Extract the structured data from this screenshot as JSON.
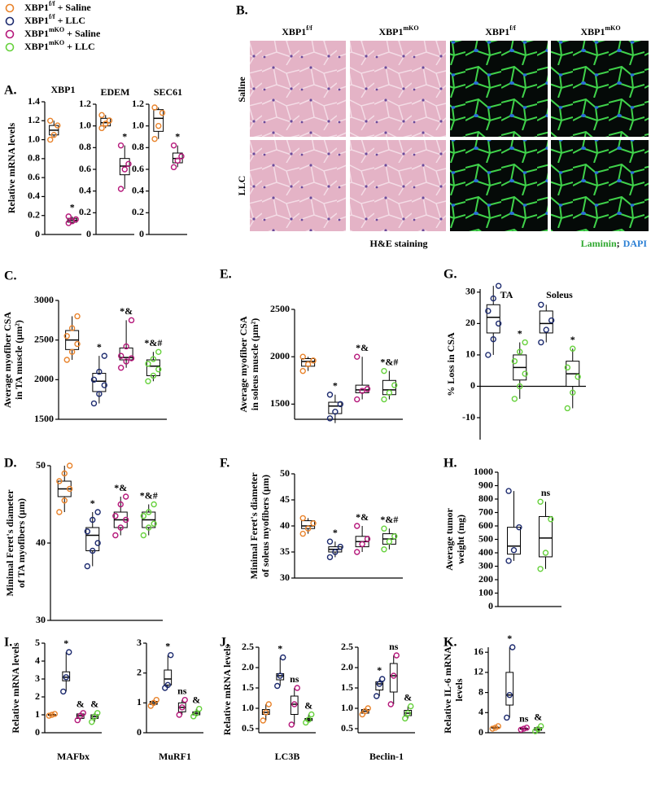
{
  "legend": [
    {
      "gene": "XBP1",
      "sup": "f/f",
      "label": "+ Saline",
      "color": "#e8822a"
    },
    {
      "gene": "XBP1",
      "sup": "f/f",
      "label": "+ LLC",
      "color": "#1c2a6e"
    },
    {
      "gene": "XBP1",
      "sup": "mKO",
      "label": "+ Saline",
      "color": "#b5177a"
    },
    {
      "gene": "XBP1",
      "sup": "mKO",
      "label": "+ LLC",
      "color": "#66d13c"
    }
  ],
  "panel_b": {
    "panel": "B.",
    "columns": [
      {
        "gene": "XBP1",
        "sup": "f/f"
      },
      {
        "gene": "XBP1",
        "sup": "mKO"
      },
      {
        "gene": "XBP1",
        "sup": "f/f"
      },
      {
        "gene": "XBP1",
        "sup": "mKO"
      }
    ],
    "rows": [
      "Saline",
      "LLC"
    ],
    "he_label": "H&E staining",
    "if_label": [
      {
        "text": "Laminin",
        "color": "#2fa82f"
      },
      {
        "text": ";",
        "color": "#000"
      },
      {
        "text": "DAPI",
        "color": "#2a7fd4"
      }
    ]
  },
  "chart_data": [
    {
      "type": "box",
      "panel": "A.",
      "title": "XBP1",
      "ylabel": [
        "Relative mRNA levels"
      ],
      "ylim": [
        0,
        1.4
      ],
      "yticks": [
        0,
        0.2,
        0.4,
        0.6,
        0.8,
        {
          "value": 1,
          "label": "1.0"
        },
        1.2,
        1.4
      ],
      "groups": [
        {
          "color": "#e8822a",
          "box": [
            1.02,
            1.05,
            1.1,
            1.15,
            1.2
          ],
          "points": [
            1.0,
            1.05,
            1.15,
            1.2
          ]
        },
        {
          "color": "#b5177a",
          "box": [
            0.12,
            0.13,
            0.15,
            0.17,
            0.19
          ],
          "points": [
            0.12,
            0.14,
            0.16,
            0.19
          ],
          "annotation": "*"
        }
      ]
    },
    {
      "type": "box",
      "title": "EDEM",
      "ylim": [
        0,
        1.2
      ],
      "yticks": [
        0,
        0.2,
        0.4,
        0.6,
        0.8,
        {
          "value": 1,
          "label": "1.0"
        },
        1.2
      ],
      "groups": [
        {
          "color": "#e8822a",
          "box": [
            0.98,
            1.0,
            1.03,
            1.07,
            1.1
          ],
          "points": [
            0.98,
            1.02,
            1.05,
            1.1
          ]
        },
        {
          "color": "#b5177a",
          "box": [
            0.42,
            0.55,
            0.63,
            0.7,
            0.82
          ],
          "points": [
            0.42,
            0.6,
            0.65,
            0.82
          ],
          "annotation": "*"
        }
      ]
    },
    {
      "type": "box",
      "title": "SEC61",
      "ylim": [
        0,
        1.2
      ],
      "yticks": [
        0,
        0.2,
        0.4,
        0.6,
        0.8,
        {
          "value": 1,
          "label": "1.0"
        },
        1.2
      ],
      "groups": [
        {
          "color": "#e8822a",
          "box": [
            0.88,
            0.95,
            1.07,
            1.15,
            1.17
          ],
          "points": [
            0.88,
            1.0,
            1.12,
            1.17
          ]
        },
        {
          "color": "#b5177a",
          "box": [
            0.62,
            0.66,
            0.7,
            0.75,
            0.82
          ],
          "points": [
            0.62,
            0.68,
            0.72,
            0.82
          ],
          "annotation": "*"
        }
      ]
    },
    {
      "type": "box",
      "panel": "C.",
      "ylabel": [
        "Average myofiber CSA",
        "in TA muscle (µm²)"
      ],
      "ylim": [
        1500,
        3000
      ],
      "yticks": [
        1500,
        2000,
        2500,
        3000
      ],
      "groups": [
        {
          "color": "#e8822a",
          "box": [
            2250,
            2380,
            2500,
            2620,
            2800
          ],
          "points": [
            2250,
            2350,
            2450,
            2550,
            2650,
            2800
          ]
        },
        {
          "color": "#1c2a6e",
          "box": [
            1700,
            1850,
            1980,
            2080,
            2300
          ],
          "points": [
            1700,
            1820,
            1930,
            2000,
            2100,
            2300
          ],
          "annotation": "*"
        },
        {
          "color": "#b5177a",
          "box": [
            2150,
            2250,
            2280,
            2400,
            2750
          ],
          "points": [
            2150,
            2230,
            2270,
            2300,
            2420,
            2750
          ],
          "annotation": "*&"
        },
        {
          "color": "#66d13c",
          "box": [
            1980,
            2050,
            2170,
            2250,
            2350
          ],
          "points": [
            1980,
            2050,
            2130,
            2200,
            2260,
            2350
          ],
          "annotation": "*&#"
        }
      ]
    },
    {
      "type": "box",
      "panel": "E.",
      "ylabel": [
        "Average myofiber CSA",
        "in soleus muscle (µm²)"
      ],
      "ylim": [
        1340,
        2500
      ],
      "yticks": [
        1500,
        2000,
        2500
      ],
      "groups": [
        {
          "color": "#e8822a",
          "box": [
            1850,
            1900,
            1950,
            1980,
            2000
          ],
          "points": [
            1850,
            1920,
            1960,
            2000
          ]
        },
        {
          "color": "#1c2a6e",
          "box": [
            1300,
            1400,
            1480,
            1520,
            1600
          ],
          "points": [
            1350,
            1420,
            1500,
            1600
          ],
          "annotation": "*"
        },
        {
          "color": "#b5177a",
          "box": [
            1550,
            1620,
            1650,
            1700,
            2000
          ],
          "points": [
            1550,
            1640,
            1660,
            2000
          ],
          "annotation": "*&"
        },
        {
          "color": "#66d13c",
          "box": [
            1550,
            1600,
            1650,
            1750,
            1850
          ],
          "points": [
            1550,
            1620,
            1700,
            1850
          ],
          "annotation": "*&#"
        }
      ]
    },
    {
      "type": "box",
      "panel": "G.",
      "subtitles": [
        "TA",
        "Soleus"
      ],
      "ylabel": [
        "% Loss in CSA"
      ],
      "ylim": [
        -17,
        31
      ],
      "yticks": [
        -10,
        0,
        10,
        20,
        30
      ],
      "groups": [
        {
          "color": "#1c2a6e",
          "box": [
            10,
            17,
            22,
            26,
            32
          ],
          "points": [
            10,
            15,
            20,
            24,
            28,
            32
          ]
        },
        {
          "color": "#66d13c",
          "box": [
            -4,
            2,
            6,
            10,
            14
          ],
          "points": [
            -4,
            0,
            4,
            8,
            11,
            14
          ],
          "annotation": "*"
        },
        {
          "color": "#1c2a6e",
          "box": [
            14,
            17,
            20,
            24,
            26
          ],
          "points": [
            14,
            18,
            21,
            26
          ]
        },
        {
          "color": "#66d13c",
          "box": [
            -7,
            0,
            4,
            8,
            12
          ],
          "points": [
            -7,
            -2,
            3,
            6,
            12
          ],
          "annotation": "*"
        }
      ]
    },
    {
      "type": "box",
      "panel": "D.",
      "ylabel": [
        "Minimal Feret's diameter",
        "of TA myofibers (µm)"
      ],
      "ylim": [
        30,
        50
      ],
      "yticks": [
        30,
        40,
        50
      ],
      "groups": [
        {
          "color": "#e8822a",
          "box": [
            44,
            46,
            47,
            48,
            50
          ],
          "points": [
            44,
            45.5,
            47,
            48,
            49,
            50
          ]
        },
        {
          "color": "#1c2a6e",
          "box": [
            37,
            39,
            41,
            42,
            44
          ],
          "points": [
            37,
            39,
            40,
            41.5,
            43,
            44
          ],
          "annotation": "*"
        },
        {
          "color": "#b5177a",
          "box": [
            41,
            42,
            43,
            44,
            46
          ],
          "points": [
            41,
            42,
            43,
            43.5,
            45,
            46
          ],
          "annotation": "*&"
        },
        {
          "color": "#66d13c",
          "box": [
            41,
            42,
            43,
            44,
            45
          ],
          "points": [
            41,
            42,
            42.5,
            43.5,
            44,
            45
          ],
          "annotation": "*&#"
        }
      ]
    },
    {
      "type": "box",
      "panel": "F.",
      "ylabel": [
        "Minimal Feret's diameter",
        "of soleus myofibers (µm)"
      ],
      "ylim": [
        30,
        50
      ],
      "yticks": [
        30,
        35,
        40,
        45,
        50
      ],
      "groups": [
        {
          "color": "#e8822a",
          "box": [
            38.5,
            39.5,
            40,
            41,
            41.5
          ],
          "points": [
            38.5,
            39.5,
            40.5,
            41.5
          ]
        },
        {
          "color": "#1c2a6e",
          "box": [
            34,
            35,
            35.5,
            36,
            37
          ],
          "points": [
            34,
            35,
            36,
            37
          ],
          "annotation": "*"
        },
        {
          "color": "#b5177a",
          "box": [
            35,
            36,
            37,
            38,
            40
          ],
          "points": [
            35,
            36.5,
            37.5,
            40
          ],
          "annotation": "*&"
        },
        {
          "color": "#66d13c",
          "box": [
            35.5,
            36.5,
            37.5,
            38.5,
            39.5
          ],
          "points": [
            35.5,
            37,
            38,
            39.5
          ],
          "annotation": "*&#"
        }
      ]
    },
    {
      "type": "box",
      "panel": "H.",
      "ylabel": [
        "Average tumor",
        "weight (mg)"
      ],
      "ylim": [
        0,
        1000
      ],
      "yticks": [
        0,
        100,
        200,
        300,
        400,
        500,
        600,
        700,
        800,
        900,
        1000
      ],
      "groups": [
        {
          "color": "#1c2a6e",
          "box": [
            340,
            390,
            450,
            590,
            860
          ],
          "points": [
            340,
            420,
            590,
            860
          ]
        },
        {
          "color": "#66d13c",
          "box": [
            280,
            370,
            510,
            670,
            780
          ],
          "points": [
            280,
            400,
            650,
            780
          ],
          "annotation": "ns"
        }
      ]
    },
    {
      "type": "box",
      "panel": "I.",
      "xlabel": "MAFbx",
      "ylabel": [
        "Relative mRNA levels"
      ],
      "ylim": [
        0,
        5
      ],
      "yticks": [
        0,
        1,
        2,
        3,
        4,
        5
      ],
      "groups": [
        {
          "color": "#e8822a",
          "box": [
            0.95,
            0.97,
            1,
            1.02,
            1.05
          ],
          "points": [
            0.95,
            1,
            1.05
          ]
        },
        {
          "color": "#1c2a6e",
          "box": [
            2.3,
            2.9,
            3.1,
            3.4,
            4.5
          ],
          "points": [
            2.3,
            3.1,
            4.5
          ],
          "annotation": "*"
        },
        {
          "color": "#b5177a",
          "box": [
            0.7,
            0.8,
            0.95,
            1.05,
            1.1
          ],
          "points": [
            0.7,
            0.95,
            1.1
          ],
          "annotation": "&"
        },
        {
          "color": "#66d13c",
          "box": [
            0.6,
            0.8,
            0.9,
            1.0,
            1.1
          ],
          "points": [
            0.6,
            0.9,
            1.1
          ],
          "annotation": "&"
        }
      ]
    },
    {
      "type": "box",
      "xlabel": "MuRF1",
      "ylim": [
        0,
        3
      ],
      "yticks": [
        0,
        1,
        2,
        3
      ],
      "groups": [
        {
          "color": "#e8822a",
          "box": [
            0.9,
            0.95,
            1.0,
            1.05,
            1.1
          ],
          "points": [
            0.9,
            1.0,
            1.1
          ]
        },
        {
          "color": "#1c2a6e",
          "box": [
            1.5,
            1.6,
            1.8,
            2.1,
            2.6
          ],
          "points": [
            1.5,
            1.6,
            2.6
          ],
          "annotation": "*"
        },
        {
          "color": "#b5177a",
          "box": [
            0.6,
            0.7,
            0.85,
            1.0,
            1.1
          ],
          "points": [
            0.6,
            0.85,
            1.1
          ],
          "annotation": "ns"
        },
        {
          "color": "#66d13c",
          "box": [
            0.55,
            0.6,
            0.65,
            0.7,
            0.8
          ],
          "points": [
            0.55,
            0.65,
            0.8
          ],
          "annotation": "&"
        }
      ]
    },
    {
      "type": "box",
      "panel": "J.",
      "xlabel": "LC3B",
      "ylabel": [
        "Relative mRNA levels"
      ],
      "ylim": [
        0.4,
        2.5
      ],
      "yticks": [
        0.5,
        {
          "value": 1,
          "label": "1.0"
        },
        1.5,
        {
          "value": 2,
          "label": "2.0"
        },
        2.5
      ],
      "groups": [
        {
          "color": "#e8822a",
          "box": [
            0.7,
            0.85,
            0.9,
            0.97,
            1.1
          ],
          "points": [
            0.7,
            0.9,
            1.1
          ]
        },
        {
          "color": "#1c2a6e",
          "box": [
            1.55,
            1.7,
            1.8,
            1.85,
            2.25
          ],
          "points": [
            1.55,
            1.8,
            2.25
          ],
          "annotation": "*"
        },
        {
          "color": "#b5177a",
          "box": [
            0.6,
            0.85,
            1.1,
            1.3,
            1.5
          ],
          "points": [
            0.6,
            1.1,
            1.5
          ],
          "annotation": "ns"
        },
        {
          "color": "#66d13c",
          "box": [
            0.65,
            0.7,
            0.72,
            0.75,
            0.85
          ],
          "points": [
            0.65,
            0.72,
            0.85
          ],
          "annotation": "&"
        }
      ]
    },
    {
      "type": "box",
      "xlabel": "Beclin-1",
      "ylim": [
        0.4,
        2.5
      ],
      "yticks": [
        0.5,
        {
          "value": 1,
          "label": "1.0"
        },
        1.5,
        {
          "value": 2,
          "label": "2.0"
        },
        2.5
      ],
      "groups": [
        {
          "color": "#e8822a",
          "box": [
            0.85,
            0.88,
            0.93,
            0.97,
            1.0
          ],
          "points": [
            0.85,
            0.93,
            1.0
          ]
        },
        {
          "color": "#1c2a6e",
          "box": [
            1.3,
            1.45,
            1.6,
            1.65,
            1.72
          ],
          "points": [
            1.3,
            1.6,
            1.72
          ],
          "annotation": "*"
        },
        {
          "color": "#b5177a",
          "box": [
            1.1,
            1.4,
            1.8,
            2.1,
            2.3
          ],
          "points": [
            1.1,
            1.8,
            2.3
          ],
          "annotation": "ns"
        },
        {
          "color": "#66d13c",
          "box": [
            0.75,
            0.82,
            0.88,
            0.95,
            1.05
          ],
          "points": [
            0.75,
            0.88,
            1.05
          ],
          "annotation": "&"
        }
      ]
    },
    {
      "type": "box",
      "panel": "K.",
      "ylabel": [
        "Relative IL-6 mRNA",
        "levels"
      ],
      "ylim": [
        0,
        17
      ],
      "yticks": [
        0,
        4,
        8,
        12,
        16
      ],
      "groups": [
        {
          "color": "#e8822a",
          "box": [
            0.8,
            0.9,
            1,
            1.1,
            1.3
          ],
          "points": [
            0.8,
            1,
            1.3
          ]
        },
        {
          "color": "#1c2a6e",
          "box": [
            3,
            5.5,
            7.5,
            12,
            17
          ],
          "points": [
            3,
            7.5,
            17
          ],
          "annotation": "*"
        },
        {
          "color": "#b5177a",
          "box": [
            0.6,
            0.7,
            0.8,
            0.9,
            1.0
          ],
          "points": [
            0.6,
            0.8,
            1.0
          ],
          "annotation": "ns"
        },
        {
          "color": "#66d13c",
          "box": [
            0.3,
            0.5,
            0.7,
            1.0,
            1.3
          ],
          "points": [
            0.3,
            0.7,
            1.3
          ],
          "annotation": "&"
        }
      ]
    }
  ]
}
